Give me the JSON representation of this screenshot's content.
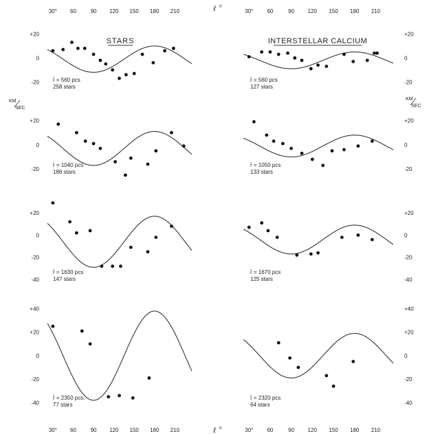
{
  "figure": {
    "axis_symbol": "ℓ",
    "axis_symbol_sup": "II",
    "units_label_top": "KM",
    "units_label_bottom": "SEC",
    "x_ticks": [
      "30°",
      "60",
      "90",
      "120",
      "150",
      "180",
      "210"
    ],
    "x_tick_values": [
      30,
      60,
      90,
      120,
      150,
      180,
      210
    ],
    "x_range": [
      22,
      235
    ],
    "line_color": "#333333",
    "marker_color": "#111111"
  },
  "column_titles": [
    "STARS",
    "INTERSTELLAR CALCIUM"
  ],
  "chart_data": [
    {
      "type": "scatter",
      "title": "STARS",
      "note_r": "r̄ = 560 pcs",
      "note_n": "258 stars",
      "ylim": [
        -25,
        22
      ],
      "y_ticks": [
        {
          "v": 20,
          "label": "+20"
        },
        {
          "v": 0,
          "label": "0"
        },
        {
          "v": -20,
          "label": "-20"
        }
      ],
      "curve": {
        "mean": -1,
        "amplitude": 11,
        "phase": 45
      },
      "points": [
        [
          30,
          6
        ],
        [
          45,
          7
        ],
        [
          58,
          13
        ],
        [
          67,
          8
        ],
        [
          77,
          8
        ],
        [
          90,
          3
        ],
        [
          100,
          -2
        ],
        [
          108,
          -5
        ],
        [
          118,
          -10
        ],
        [
          128,
          -17
        ],
        [
          138,
          -14
        ],
        [
          150,
          -13
        ],
        [
          162,
          3
        ],
        [
          178,
          -4
        ],
        [
          195,
          6
        ],
        [
          208,
          8
        ]
      ]
    },
    {
      "type": "scatter",
      "title": "INTERSTELLAR CALCIUM",
      "note_r": "r̄ = 560 pcs",
      "note_n": "127 stars",
      "ylim": [
        -25,
        22
      ],
      "y_ticks": [
        {
          "v": 20,
          "label": "+20"
        },
        {
          "v": 0,
          "label": "0"
        },
        {
          "v": -20,
          "label": "-20"
        }
      ],
      "curve": {
        "mean": -2,
        "amplitude": 7,
        "phase": 45
      },
      "points": [
        [
          30,
          1
        ],
        [
          48,
          5
        ],
        [
          60,
          5
        ],
        [
          72,
          3
        ],
        [
          85,
          4
        ],
        [
          95,
          0
        ],
        [
          105,
          -2
        ],
        [
          118,
          -9
        ],
        [
          128,
          -6
        ],
        [
          140,
          -7
        ],
        [
          165,
          3
        ],
        [
          178,
          -3
        ],
        [
          198,
          -2
        ],
        [
          208,
          4
        ],
        [
          212,
          4
        ]
      ]
    },
    {
      "type": "scatter",
      "note_r": "r̄ = 1040 pcs",
      "note_n": "186 stars",
      "ylim": [
        -25,
        22
      ],
      "y_ticks": [
        {
          "v": 20,
          "label": "+20"
        },
        {
          "v": 0,
          "label": "0"
        },
        {
          "v": -20,
          "label": "-20"
        }
      ],
      "curve": {
        "mean": -3,
        "amplitude": 14,
        "phase": 45
      },
      "points": [
        [
          38,
          17
        ],
        [
          65,
          10
        ],
        [
          78,
          3
        ],
        [
          90,
          1
        ],
        [
          100,
          -3
        ],
        [
          122,
          -14
        ],
        [
          137,
          -25
        ],
        [
          145,
          -11
        ],
        [
          170,
          -16
        ],
        [
          182,
          -5
        ],
        [
          205,
          10
        ],
        [
          223,
          -1
        ]
      ]
    },
    {
      "type": "scatter",
      "note_r": "r̄ = 1050 pcs",
      "note_n": "133 stars",
      "ylim": [
        -25,
        22
      ],
      "y_ticks": [
        {
          "v": 20,
          "label": "+20"
        },
        {
          "v": 0,
          "label": "0"
        },
        {
          "v": -20,
          "label": "-20"
        }
      ],
      "curve": {
        "mean": -1,
        "amplitude": 9,
        "phase": 45
      },
      "points": [
        [
          37,
          19
        ],
        [
          55,
          8
        ],
        [
          65,
          3
        ],
        [
          78,
          1
        ],
        [
          90,
          -3
        ],
        [
          105,
          -7
        ],
        [
          120,
          -12
        ],
        [
          135,
          -17
        ],
        [
          148,
          -5
        ],
        [
          165,
          -4
        ],
        [
          185,
          -1
        ],
        [
          205,
          3
        ]
      ]
    },
    {
      "type": "scatter",
      "note_r": "r̄ = 1630 pcs",
      "note_n": "147 stars",
      "ylim": [
        -48,
        33
      ],
      "y_ticks": [
        {
          "v": 20,
          "label": "+20"
        },
        {
          "v": 0,
          "label": "0"
        },
        {
          "v": -20,
          "label": "-20"
        },
        {
          "v": -40,
          "label": "-40"
        }
      ],
      "curve": {
        "mean": -6,
        "amplitude": 23,
        "phase": 45
      },
      "points": [
        [
          30,
          29
        ],
        [
          55,
          12
        ],
        [
          65,
          2
        ],
        [
          85,
          4
        ],
        [
          102,
          -28
        ],
        [
          118,
          -28
        ],
        [
          130,
          -28
        ],
        [
          145,
          -11
        ],
        [
          170,
          -15
        ],
        [
          182,
          -2
        ],
        [
          205,
          8
        ]
      ]
    },
    {
      "type": "scatter",
      "note_r": "r̄ = 1670 pcs",
      "note_n": "125 stars",
      "ylim": [
        -48,
        33
      ],
      "y_ticks": [
        {
          "v": 20,
          "label": "+20"
        },
        {
          "v": 0,
          "label": "0"
        },
        {
          "v": -20,
          "label": "-20"
        },
        {
          "v": -40,
          "label": "-40"
        }
      ],
      "curve": {
        "mean": -4,
        "amplitude": 13,
        "phase": 45
      },
      "points": [
        [
          30,
          7
        ],
        [
          48,
          11
        ],
        [
          57,
          4
        ],
        [
          70,
          -2
        ],
        [
          98,
          -18
        ],
        [
          118,
          -17
        ],
        [
          128,
          -16
        ],
        [
          162,
          -2
        ],
        [
          185,
          0
        ],
        [
          205,
          -4
        ]
      ]
    },
    {
      "type": "scatter",
      "note_r": "r̄ = 2350 pcs.",
      "note_n": "77 stars",
      "ylim": [
        -48,
        45
      ],
      "y_ticks": [
        {
          "v": 40,
          "label": "+40"
        },
        {
          "v": 20,
          "label": "+20"
        },
        {
          "v": 0,
          "label": "0"
        },
        {
          "v": -20,
          "label": "-20"
        },
        {
          "v": -40,
          "label": "-40"
        }
      ],
      "curve": {
        "mean": 0,
        "amplitude": 38,
        "phase": 45
      },
      "points": [
        [
          30,
          25
        ],
        [
          73,
          21
        ],
        [
          85,
          10
        ],
        [
          112,
          -35
        ],
        [
          128,
          -34
        ],
        [
          148,
          -36
        ],
        [
          172,
          -19
        ]
      ]
    },
    {
      "type": "scatter",
      "note_r": "r̄ = 2320 pcs",
      "note_n": "64 stars",
      "ylim": [
        -48,
        45
      ],
      "y_ticks": [
        {
          "v": 40,
          "label": "+40"
        },
        {
          "v": 20,
          "label": "+20"
        },
        {
          "v": 0,
          "label": "0"
        },
        {
          "v": -20,
          "label": "-20"
        },
        {
          "v": -40,
          "label": "-40"
        }
      ],
      "curve": {
        "mean": 0,
        "amplitude": 19,
        "phase": 45
      },
      "points": [
        [
          72,
          11
        ],
        [
          88,
          -2
        ],
        [
          100,
          -10
        ],
        [
          140,
          -17
        ],
        [
          150,
          -26
        ],
        [
          178,
          -5
        ]
      ]
    }
  ]
}
